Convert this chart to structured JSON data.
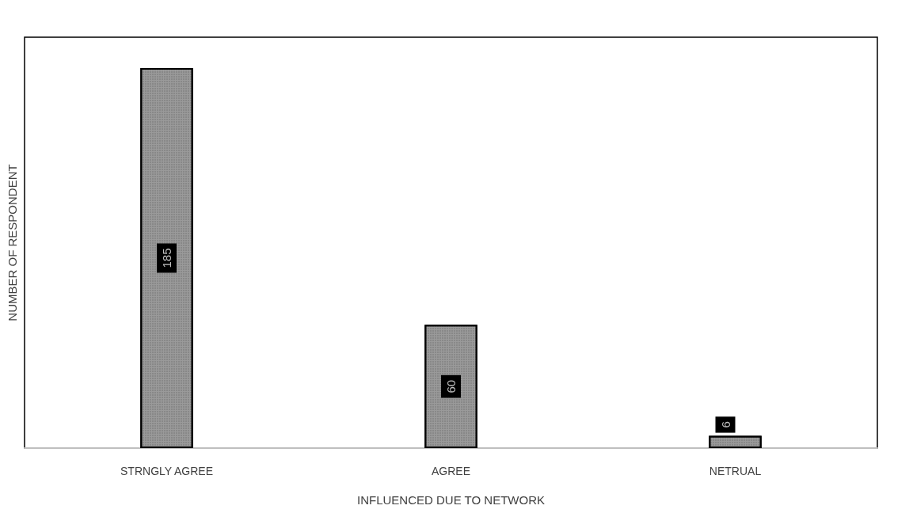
{
  "chart_data": {
    "type": "bar",
    "xlabel": "INFLUENCED DUE TO NETWORK",
    "ylabel": "NUMBER OF RESPONDENT",
    "categories": [
      "STRNGLY AGREE",
      "AGREE",
      "NETRUAL"
    ],
    "values": [
      185,
      60,
      6
    ],
    "color": "#9a9a9a",
    "ylim": [
      0,
      200
    ],
    "data_labels": true,
    "tick_labels": "x",
    "grid": false
  }
}
